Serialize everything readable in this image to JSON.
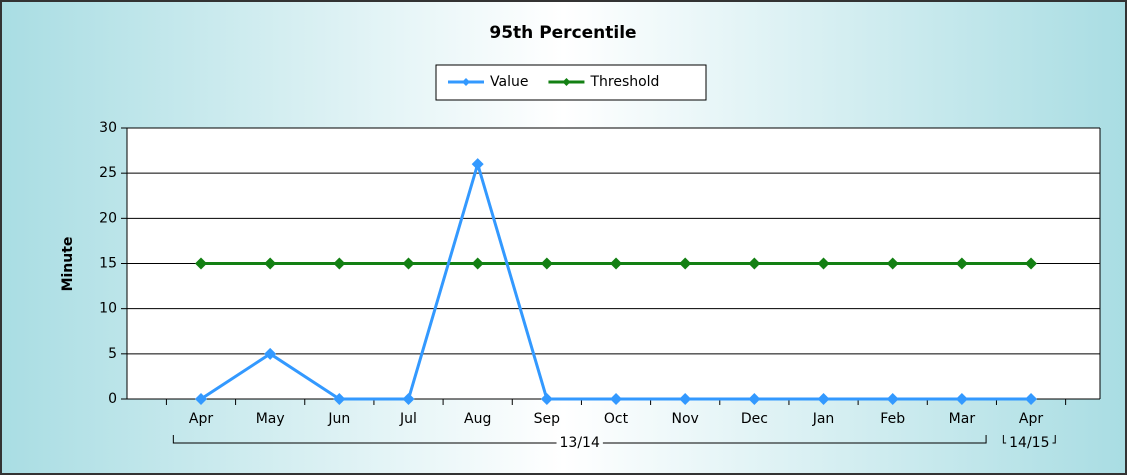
{
  "chart_data": {
    "type": "line",
    "title": "95th Percentile",
    "y_label": "Minute",
    "categories": [
      "Apr",
      "May",
      "Jun",
      "Jul",
      "Aug",
      "Sep",
      "Oct",
      "Nov",
      "Dec",
      "Jan",
      "Feb",
      "Mar",
      "Apr"
    ],
    "x_groups": [
      {
        "label": "13/14",
        "count": 12
      },
      {
        "label": "14/15",
        "count": 1
      }
    ],
    "series": [
      {
        "name": "Value",
        "color": "#3399ff",
        "values": [
          0,
          5,
          0,
          0,
          26,
          0,
          0,
          0,
          0,
          0,
          0,
          0,
          0
        ]
      },
      {
        "name": "Threshold",
        "color": "#138013",
        "values": [
          15,
          15,
          15,
          15,
          15,
          15,
          15,
          15,
          15,
          15,
          15,
          15,
          15
        ]
      }
    ],
    "ylim": [
      0,
      30
    ],
    "yticks": [
      0,
      5,
      10,
      15,
      20,
      25,
      30
    ],
    "grid": true
  }
}
